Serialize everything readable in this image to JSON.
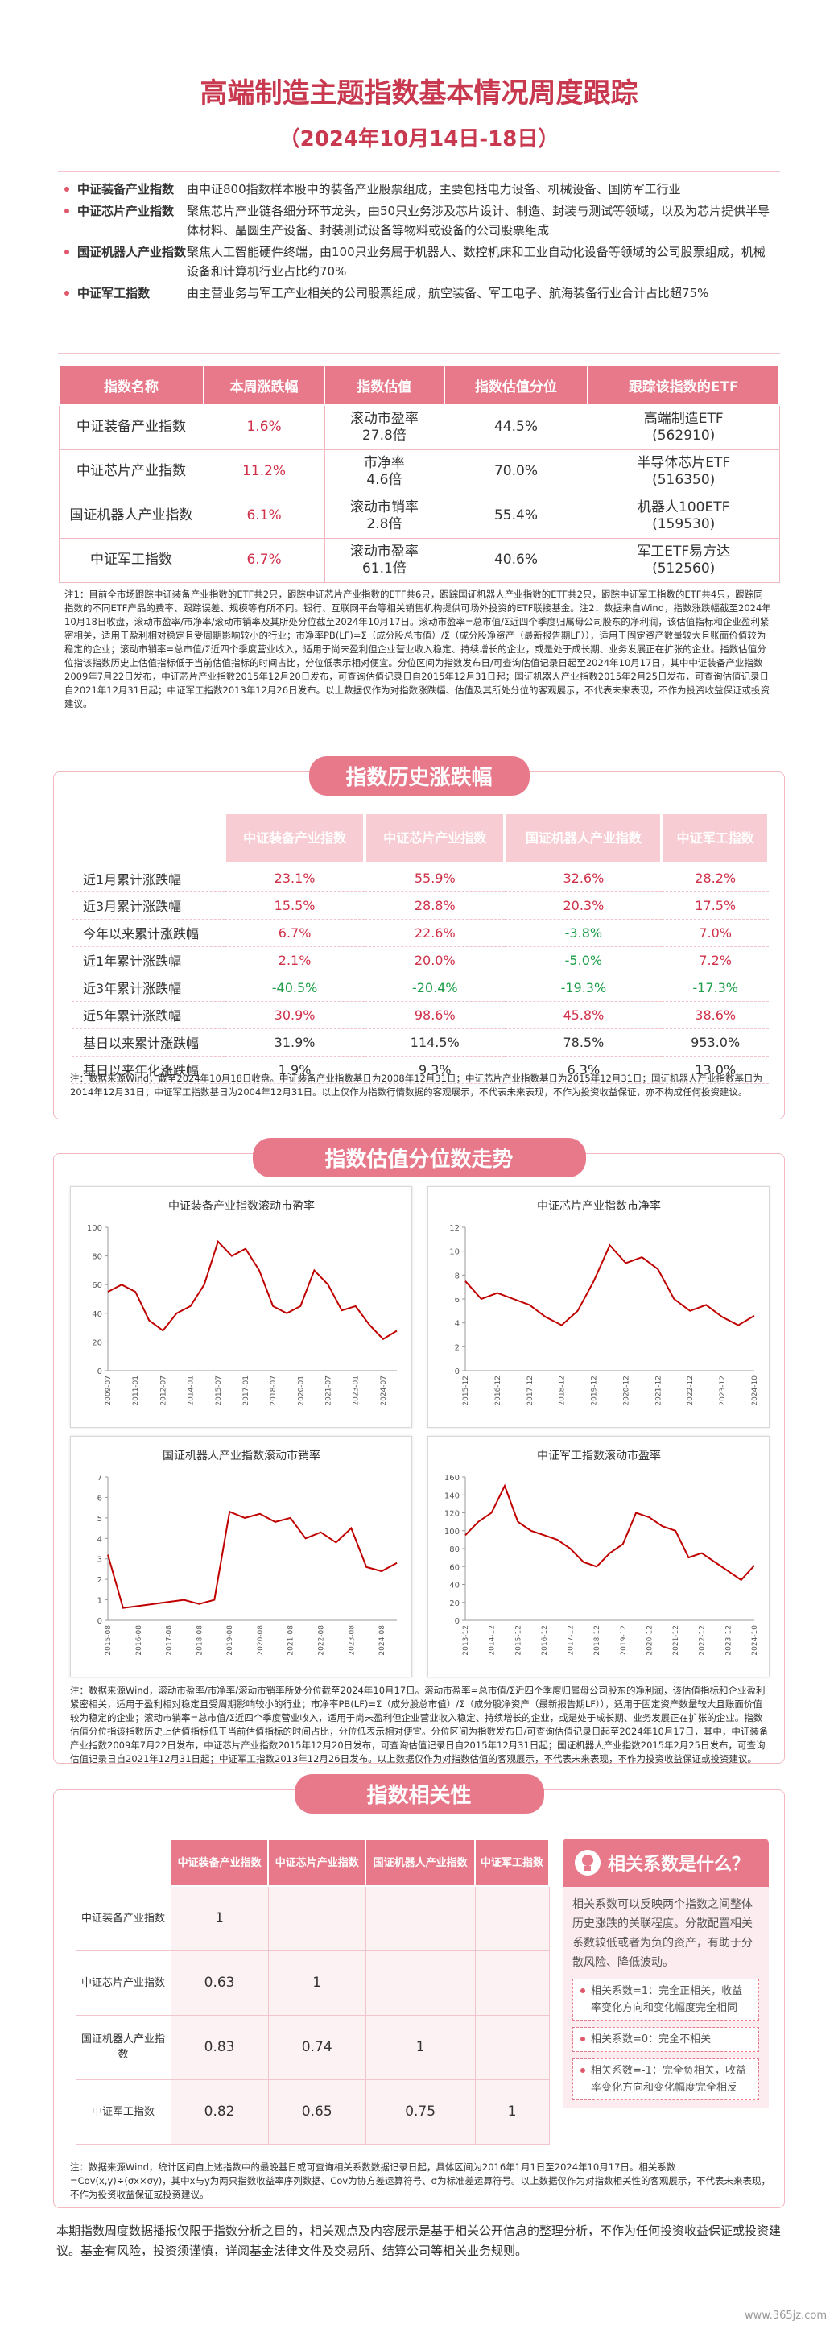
{
  "header": {
    "title": "高端制造主题指数基本情况周度跟踪",
    "subtitle": "（2024年10月14日-18日）"
  },
  "intro": [
    {
      "label": "中证装备产业指数",
      "text": "由中证800指数样本股中的装备产业股票组成，主要包括电力设备、机械设备、国防军工行业"
    },
    {
      "label": "中证芯片产业指数",
      "text": "聚焦芯片产业链各细分环节龙头，由50只业务涉及芯片设计、制造、封装与测试等领域，以及为芯片提供半导体材料、晶圆生产设备、封装测试设备等物料或设备的公司股票组成"
    },
    {
      "label": "国证机器人产业指数",
      "text": "聚焦人工智能硬件终端，由100只业务属于机器人、数控机床和工业自动化设备等领域的公司股票组成，机械设备和计算机行业占比约70%"
    },
    {
      "label": "中证军工指数",
      "text": "由主营业务与军工产业相关的公司股票组成，航空装备、军工电子、航海装备行业合计占比超75%"
    }
  ],
  "valuation_table": {
    "columns": [
      "指数名称",
      "本周涨跌幅",
      "指数估值",
      "指数估值分位",
      "跟踪该指数的ETF"
    ],
    "rows": [
      {
        "name": "中证装备产业指数",
        "weekly_change": "1.6%",
        "metric": "滚动市盈率",
        "valuation": "27.8倍",
        "percentile": "44.5%",
        "etf": "高端制造ETF",
        "code": "(562910)"
      },
      {
        "name": "中证芯片产业指数",
        "weekly_change": "11.2%",
        "metric": "市净率",
        "valuation": "4.6倍",
        "percentile": "70.0%",
        "etf": "半导体芯片ETF",
        "code": "(516350)"
      },
      {
        "name": "国证机器人产业指数",
        "weekly_change": "6.1%",
        "metric": "滚动市销率",
        "valuation": "2.8倍",
        "percentile": "55.4%",
        "etf": "机器人100ETF",
        "code": "(159530)"
      },
      {
        "name": "中证军工指数",
        "weekly_change": "6.7%",
        "metric": "滚动市盈率",
        "valuation": "61.1倍",
        "percentile": "40.6%",
        "etf": "军工ETF易方达",
        "code": "(512560)"
      }
    ]
  },
  "note1": "注1：目前全市场跟踪中证装备产业指数的ETF共2只，跟踪中证芯片产业指数的ETF共6只，跟踪国证机器人产业指数的ETF共2只，跟踪中证军工指数的ETF共4只，跟踪同一指数的不同ETF产品的费率、跟踪误差、规模等有所不同。银行、互联网平台等相关销售机构提供可场外投资的ETF联接基金。注2：数据来自Wind，指数涨跌幅截至2024年10月18日收盘，滚动市盈率/市净率/滚动市销率及其所处分位截至2024年10月17日。滚动市盈率=总市值/Σ近四个季度归属母公司股东的净利润，该估值指标和企业盈利紧密相关，适用于盈利相对稳定且受周期影响较小的行业；市净率PB(LF)=Σ（成分股总市值）/Σ（成分股净资产（最新报告期LF）），适用于固定资产数量较大且账面价值较为稳定的企业；滚动市销率=总市值/Σ近四个季度营业收入，适用于尚未盈利但企业营业收入稳定、持续增长的企业，或是处于成长期、业务发展正在扩张的企业。指数估值分位指该指数历史上估值指标低于当前估值指标的时间占比，分位低表示相对便宜。分位区间为指数发布日/可查询估值记录日起至2024年10月17日，其中中证装备产业指数2009年7月22日发布，中证芯片产业指数2015年12月20日发布，可查询估值记录日自2015年12月31日起；国证机器人产业指数2015年2月25日发布，可查询估值记录日自2021年12月31日起；中证军工指数2013年12月26日发布。以上数据仅作为对指数涨跌幅、估值及其所处分位的客观展示，不代表未来表现，不作为投资收益保证或投资建议。",
  "history": {
    "title": "指数历史涨跌幅",
    "columns": [
      "中证装备产业指数",
      "中证芯片产业指数",
      "国证机器人产业指数",
      "中证军工指数"
    ],
    "rows": [
      {
        "label": "近1月累计涨跌幅",
        "values": [
          "23.1%",
          "55.9%",
          "32.6%",
          "28.2%"
        ]
      },
      {
        "label": "近3月累计涨跌幅",
        "values": [
          "15.5%",
          "28.8%",
          "20.3%",
          "17.5%"
        ]
      },
      {
        "label": "今年以来累计涨跌幅",
        "values": [
          "6.7%",
          "22.6%",
          "-3.8%",
          "7.0%"
        ]
      },
      {
        "label": "近1年累计涨跌幅",
        "values": [
          "2.1%",
          "20.0%",
          "-5.0%",
          "7.2%"
        ]
      },
      {
        "label": "近3年累计涨跌幅",
        "values": [
          "-40.5%",
          "-20.4%",
          "-19.3%",
          "-17.3%"
        ]
      },
      {
        "label": "近5年累计涨跌幅",
        "values": [
          "30.9%",
          "98.6%",
          "45.8%",
          "38.6%"
        ]
      },
      {
        "label": "基日以来累计涨跌幅",
        "values": [
          "31.9%",
          "114.5%",
          "78.5%",
          "953.0%"
        ]
      },
      {
        "label": "基日以来年化涨跌幅",
        "values": [
          "1.9%",
          "9.3%",
          "6.3%",
          "13.0%"
        ]
      }
    ],
    "note": "注：数据来源Wind，截至2024年10月18日收盘。中证装备产业指数基日为2008年12月31日；中证芯片产业指数基日为2015年12月31日；国证机器人产业指数基日为2014年12月31日；中证军工指数基日为2004年12月31日。以上仅作为指数行情数据的客观展示，不代表未来表现，不作为投资收益保证，亦不构成任何投资建议。"
  },
  "valuation_section": {
    "title": "指数估值分位数走势",
    "note": "注：数据来源Wind，滚动市盈率/市净率/滚动市销率所处分位截至2024年10月17日。滚动市盈率=总市值/Σ近四个季度归属母公司股东的净利润，该估值指标和企业盈利紧密相关，适用于盈利相对稳定且受周期影响较小的行业；市净率PB(LF)=Σ（成分股总市值）/Σ（成分股净资产（最新报告期LF）），适用于固定资产数量较大且账面价值较为稳定的企业；滚动市销率=总市值/Σ近四个季度营业收入，适用于尚未盈利但企业营业收入稳定、持续增长的企业，或是处于成长期、业务发展正在扩张的企业。指数估值分位指该指数历史上估值指标低于当前估值指标的时间占比，分位低表示相对便宜。分位区间为指数发布日/可查询估值记录日起至2024年10月17日，其中，中证装备产业指数2009年7月22日发布，中证芯片产业指数2015年12月20日发布，可查询估值记录日自2015年12月31日起；国证机器人产业指数2015年2月25日发布，可查询估值记录日自2021年12月31日起；中证军工指数2013年12月26日发布。以上数据仅作为对指数估值的客观展示，不代表未来表现，不作为投资收益保证或投资建议。"
  },
  "chart_data": [
    {
      "type": "line",
      "title": "中证装备产业指数滚动市盈率",
      "color": "#c00000",
      "x": [
        "2009-07",
        "2010-04",
        "2011-01",
        "2011-10",
        "2012-07",
        "2013-04",
        "2014-01",
        "2014-10",
        "2015-07",
        "2016-04",
        "2017-01",
        "2017-10",
        "2018-07",
        "2019-04",
        "2020-01",
        "2020-10",
        "2021-07",
        "2022-04",
        "2023-01",
        "2023-10",
        "2024-07",
        "2024-10"
      ],
      "values": [
        55,
        60,
        55,
        35,
        28,
        40,
        45,
        60,
        90,
        80,
        85,
        70,
        45,
        40,
        45,
        70,
        60,
        42,
        45,
        32,
        22,
        27.8
      ],
      "xticks": [
        "2009-07",
        "2011-01",
        "2012-07",
        "2014-01",
        "2015-07",
        "2017-01",
        "2018-07",
        "2020-01",
        "2021-07",
        "2023-01",
        "2024-07"
      ],
      "ylim": [
        0,
        100
      ],
      "yticks": [
        0,
        20,
        40,
        60,
        80,
        100
      ]
    },
    {
      "type": "line",
      "title": "中证芯片产业指数市净率",
      "color": "#c00000",
      "x": [
        "2015-12",
        "2016-06",
        "2016-12",
        "2017-06",
        "2017-12",
        "2018-06",
        "2018-12",
        "2019-06",
        "2019-12",
        "2020-06",
        "2020-12",
        "2021-06",
        "2021-12",
        "2022-06",
        "2022-12",
        "2023-06",
        "2023-12",
        "2024-06",
        "2024-10"
      ],
      "values": [
        7.5,
        6,
        6.5,
        6,
        5.5,
        4.5,
        3.8,
        5,
        7.5,
        10.5,
        9,
        9.5,
        8.5,
        6,
        5,
        5.5,
        4.5,
        3.8,
        4.6
      ],
      "xticks": [
        "2015-12",
        "2016-12",
        "2017-12",
        "2018-12",
        "2019-12",
        "2020-12",
        "2021-12",
        "2022-12",
        "2023-12",
        "2024-10"
      ],
      "ylim": [
        0,
        12
      ],
      "yticks": [
        0,
        2,
        4,
        6,
        8,
        10,
        12
      ]
    },
    {
      "type": "line",
      "title": "国证机器人产业指数滚动市销率",
      "color": "#c00000",
      "x": [
        "2015-08",
        "2016-02",
        "2016-08",
        "2017-02",
        "2017-08",
        "2018-02",
        "2018-08",
        "2019-02",
        "2019-08",
        "2020-02",
        "2020-08",
        "2021-02",
        "2021-08",
        "2022-02",
        "2022-08",
        "2023-02",
        "2023-08",
        "2024-02",
        "2024-08",
        "2024-10"
      ],
      "values": [
        3.2,
        0.6,
        0.7,
        0.8,
        0.9,
        1.0,
        0.8,
        1.0,
        5.3,
        5.0,
        5.2,
        4.8,
        5.0,
        4.0,
        4.3,
        3.8,
        4.5,
        2.6,
        2.4,
        2.8
      ],
      "xticks": [
        "2015-08",
        "2016-08",
        "2017-08",
        "2018-08",
        "2019-08",
        "2020-08",
        "2021-08",
        "2022-08",
        "2023-08",
        "2024-08"
      ],
      "ylim": [
        0,
        7
      ],
      "yticks": [
        0,
        1,
        2,
        3,
        4,
        5,
        6,
        7
      ]
    },
    {
      "type": "line",
      "title": "中证军工指数滚动市盈率",
      "color": "#c00000",
      "x": [
        "2013-12",
        "2014-06",
        "2014-12",
        "2015-06",
        "2015-12",
        "2016-06",
        "2016-12",
        "2017-06",
        "2017-12",
        "2018-06",
        "2018-12",
        "2019-06",
        "2019-12",
        "2020-06",
        "2020-12",
        "2021-06",
        "2021-12",
        "2022-06",
        "2022-12",
        "2023-06",
        "2023-12",
        "2024-06",
        "2024-10"
      ],
      "values": [
        95,
        110,
        120,
        150,
        110,
        100,
        95,
        90,
        80,
        65,
        60,
        75,
        85,
        120,
        115,
        105,
        100,
        70,
        75,
        65,
        55,
        45,
        61.1
      ],
      "xticks": [
        "2013-12",
        "2014-12",
        "2015-12",
        "2016-12",
        "2017-12",
        "2018-12",
        "2019-12",
        "2020-12",
        "2021-12",
        "2022-12",
        "2023-12",
        "2024-10"
      ],
      "ylim": [
        0,
        160
      ],
      "yticks": [
        0,
        20,
        40,
        60,
        80,
        100,
        120,
        140,
        160
      ]
    }
  ],
  "correlation": {
    "title": "指数相关性",
    "columns": [
      "中证装备产业指数",
      "中证芯片产业指数",
      "国证机器人产业指数",
      "中证军工指数"
    ],
    "rows": [
      {
        "label": "中证装备产业指数",
        "values": [
          "1"
        ]
      },
      {
        "label": "中证芯片产业指数",
        "values": [
          "0.63",
          "1"
        ]
      },
      {
        "label": "国证机器人产业指数",
        "values": [
          "0.83",
          "0.74",
          "1"
        ]
      },
      {
        "label": "中证军工指数",
        "values": [
          "0.82",
          "0.65",
          "0.75",
          "1"
        ]
      }
    ],
    "explain": {
      "title": "相关系数是什么？",
      "text": "相关系数可以反映两个指数之间整体历史涨跌的关联程度。分散配置相关系数较低或者为负的资产，有助于分散风险、降低波动。",
      "bullets": [
        "相关系数=1：完全正相关，收益率变化方向和变化幅度完全相同",
        "相关系数=0：完全不相关",
        "相关系数=-1：完全负相关，收益率变化方向和变化幅度完全相反"
      ]
    },
    "note": "注：数据来源Wind，统计区间自上述指数中的最晚基日或可查询相关系数数据记录日起，具体区间为2016年1月1日至2024年10月17日。相关系数=Cov(x,y)÷(σx×σy)，其中x与y为两只指数收益率序列数据、Cov为协方差运算符号、σ为标准差运算符号。以上数据仅作为对指数相关性的客观展示，不代表未来表现，不作为投资收益保证或投资建议。"
  },
  "footer": "本期指数周度数据播报仅限于指数分析之目的，相关观点及内容展示是基于相关公开信息的整理分析，不作为任何投资收益保证或投资建议。基金有风险，投资须谨慎，详阅基金法律文件及交易所、结算公司等相关业务规则。",
  "watermark": "www.365jz.com"
}
